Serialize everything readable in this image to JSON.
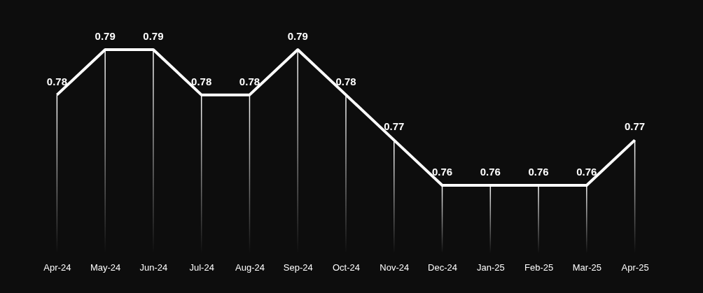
{
  "chart_data": {
    "type": "line",
    "categories": [
      "Apr-24",
      "May-24",
      "Jun-24",
      "Jul-24",
      "Aug-24",
      "Sep-24",
      "Oct-24",
      "Nov-24",
      "Dec-24",
      "Jan-25",
      "Feb-25",
      "Mar-25",
      "Apr-25"
    ],
    "series": [
      {
        "color": "#ffffff",
        "values": [
          0.78,
          0.79,
          0.79,
          0.78,
          0.78,
          0.79,
          0.78,
          0.77,
          0.76,
          0.76,
          0.76,
          0.76,
          0.77
        ]
      }
    ],
    "ref_lines": [
      {
        "axis": "x",
        "value": "Apr-24",
        "color": "#ffffff"
      },
      {
        "axis": "x",
        "value": "May-24",
        "color": "#ffffff"
      },
      {
        "axis": "x",
        "value": "Jun-24",
        "color": "#ffffff"
      },
      {
        "axis": "x",
        "value": "Jul-24",
        "color": "#ffffff"
      },
      {
        "axis": "x",
        "value": "Aug-24",
        "color": "#ffffff"
      },
      {
        "axis": "x",
        "value": "Sep-24",
        "color": "#ffffff"
      },
      {
        "axis": "x",
        "value": "Oct-24",
        "color": "#ffffff"
      },
      {
        "axis": "x",
        "value": "Nov-24",
        "color": "#ffffff"
      },
      {
        "axis": "x",
        "value": "Dec-24",
        "color": "#ffffff"
      },
      {
        "axis": "x",
        "value": "Jan-25",
        "color": "#ffffff"
      },
      {
        "axis": "x",
        "value": "Feb-25",
        "color": "#ffffff"
      },
      {
        "axis": "x",
        "value": "Mar-25",
        "color": "#ffffff"
      },
      {
        "axis": "x",
        "value": "Apr-25",
        "color": "#ffffff"
      }
    ],
    "ylim": [
      0.745,
      0.79
    ],
    "data_labels": true,
    "tick_labels": "x",
    "marker": "none",
    "line_style": "solid"
  }
}
